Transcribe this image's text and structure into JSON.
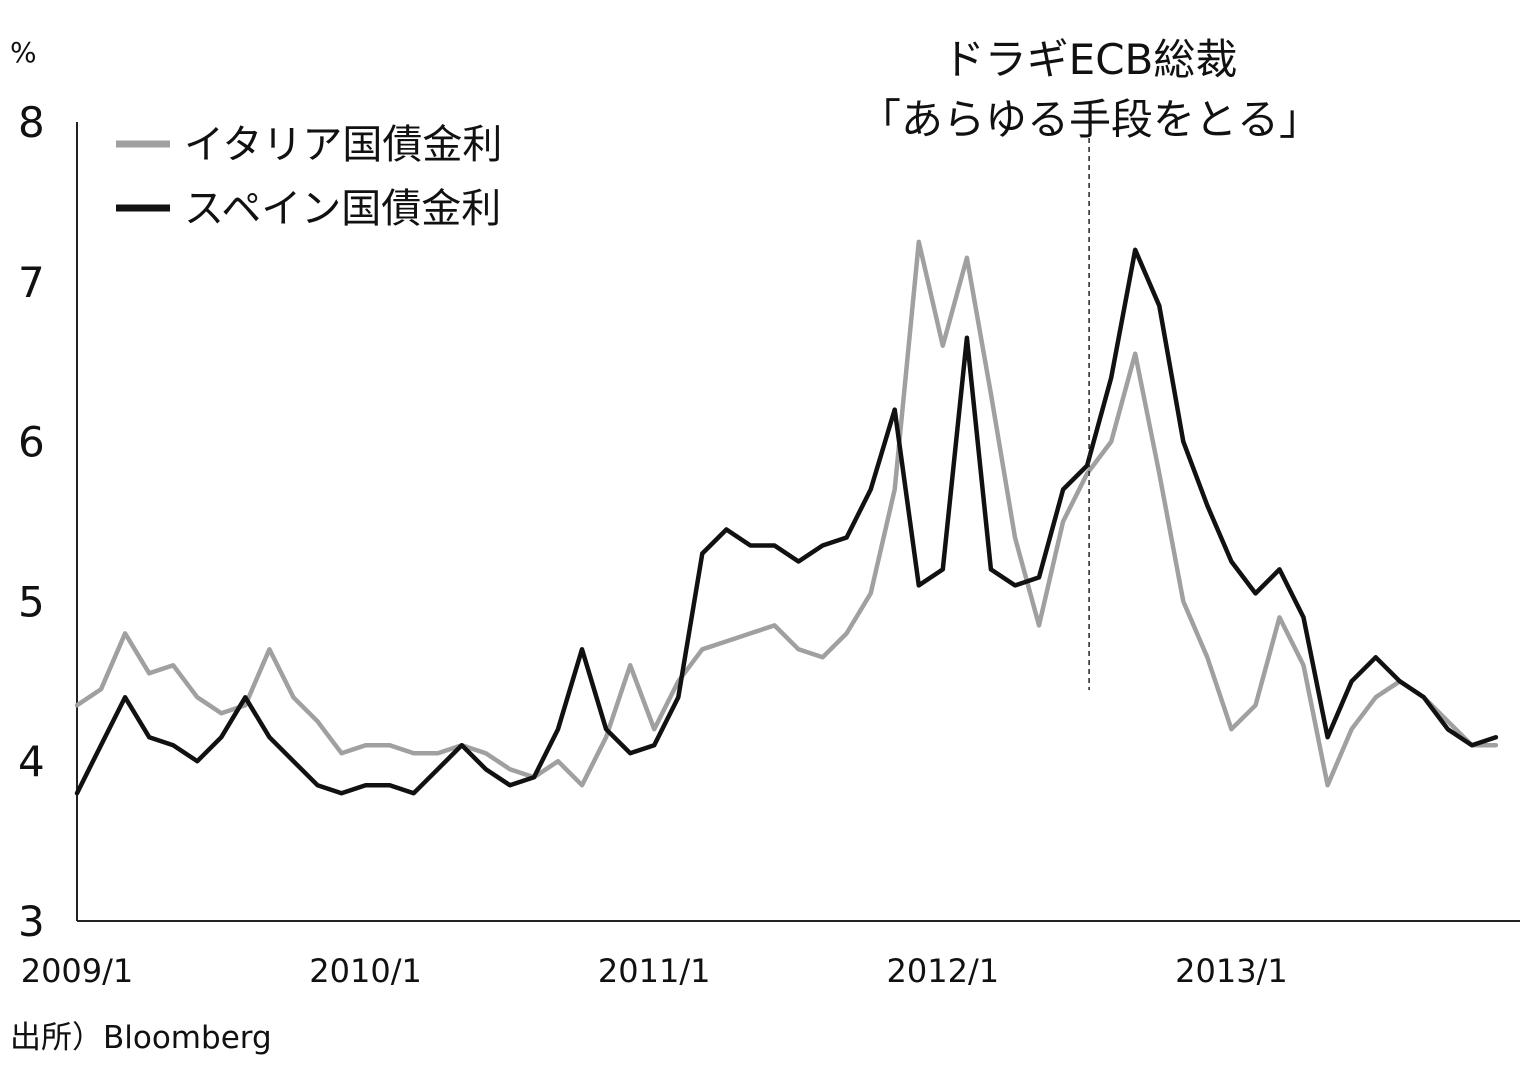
{
  "chart_data": {
    "type": "line",
    "y_unit": "%",
    "ylim": [
      3,
      8
    ],
    "y_ticks": [
      "3",
      "4",
      "5",
      "6",
      "7",
      "8"
    ],
    "x_range": [
      "2009/1",
      "2013/12"
    ],
    "x_ticks": [
      "2009/1",
      "2010/1",
      "2011/1",
      "2012/1",
      "2013/1"
    ],
    "legend_placement": "top-left",
    "grid": false,
    "series": [
      {
        "name": "イタリア国債金利",
        "color": "#a0a0a0",
        "points": [
          [
            "2009/1",
            4.35
          ],
          [
            "2009/2",
            4.45
          ],
          [
            "2009/3",
            4.8
          ],
          [
            "2009/4",
            4.55
          ],
          [
            "2009/5",
            4.6
          ],
          [
            "2009/6",
            4.4
          ],
          [
            "2009/7",
            4.3
          ],
          [
            "2009/8",
            4.35
          ],
          [
            "2009/9",
            4.7
          ],
          [
            "2009/10",
            4.4
          ],
          [
            "2009/11",
            4.25
          ],
          [
            "2009/12",
            4.05
          ],
          [
            "2010/1",
            4.1
          ],
          [
            "2010/2",
            4.1
          ],
          [
            "2010/3",
            4.05
          ],
          [
            "2010/4",
            4.05
          ],
          [
            "2010/5",
            4.1
          ],
          [
            "2010/6",
            4.05
          ],
          [
            "2010/7",
            3.95
          ],
          [
            "2010/8",
            3.9
          ],
          [
            "2010/9",
            4.0
          ],
          [
            "2010/10",
            3.85
          ],
          [
            "2010/11",
            4.15
          ],
          [
            "2010/12",
            4.6
          ],
          [
            "2011/1",
            4.2
          ],
          [
            "2011/2",
            4.5
          ],
          [
            "2011/3",
            4.7
          ],
          [
            "2011/4",
            4.75
          ],
          [
            "2011/5",
            4.8
          ],
          [
            "2011/6",
            4.85
          ],
          [
            "2011/7",
            4.7
          ],
          [
            "2011/8",
            4.65
          ],
          [
            "2011/9",
            4.8
          ],
          [
            "2011/10",
            5.05
          ],
          [
            "2011/11",
            5.7
          ],
          [
            "2011/12",
            7.25
          ],
          [
            "2012/1",
            6.6
          ],
          [
            "2012/2",
            7.15
          ],
          [
            "2012/3",
            6.3
          ],
          [
            "2012/4",
            5.4
          ],
          [
            "2012/5",
            4.85
          ],
          [
            "2012/6",
            5.5
          ],
          [
            "2012/7",
            5.8
          ],
          [
            "2012/8",
            6.0
          ],
          [
            "2012/9",
            6.55
          ],
          [
            "2012/10",
            5.8
          ],
          [
            "2012/11",
            5.0
          ],
          [
            "2012/12",
            4.65
          ],
          [
            "2013/1",
            4.2
          ],
          [
            "2013/2",
            4.35
          ],
          [
            "2013/3",
            4.9
          ],
          [
            "2013/4",
            4.6
          ],
          [
            "2013/5",
            3.85
          ],
          [
            "2013/6",
            4.2
          ],
          [
            "2013/7",
            4.4
          ],
          [
            "2013/8",
            4.5
          ],
          [
            "2013/9",
            4.4
          ],
          [
            "2013/10",
            4.25
          ],
          [
            "2013/11",
            4.1
          ],
          [
            "2013/12",
            4.1
          ]
        ]
      },
      {
        "name": "スペイン国債金利",
        "color": "#111111",
        "points": [
          [
            "2009/1",
            3.8
          ],
          [
            "2009/2",
            4.1
          ],
          [
            "2009/3",
            4.4
          ],
          [
            "2009/4",
            4.15
          ],
          [
            "2009/5",
            4.1
          ],
          [
            "2009/6",
            4.0
          ],
          [
            "2009/7",
            4.15
          ],
          [
            "2009/8",
            4.4
          ],
          [
            "2009/9",
            4.15
          ],
          [
            "2009/10",
            4.0
          ],
          [
            "2009/11",
            3.85
          ],
          [
            "2009/12",
            3.8
          ],
          [
            "2010/1",
            3.85
          ],
          [
            "2010/2",
            3.85
          ],
          [
            "2010/3",
            3.8
          ],
          [
            "2010/4",
            3.95
          ],
          [
            "2010/5",
            4.1
          ],
          [
            "2010/6",
            3.95
          ],
          [
            "2010/7",
            3.85
          ],
          [
            "2010/8",
            3.9
          ],
          [
            "2010/9",
            4.2
          ],
          [
            "2010/10",
            4.7
          ],
          [
            "2010/11",
            4.2
          ],
          [
            "2010/12",
            4.05
          ],
          [
            "2011/1",
            4.1
          ],
          [
            "2011/2",
            4.4
          ],
          [
            "2011/3",
            5.3
          ],
          [
            "2011/4",
            5.45
          ],
          [
            "2011/5",
            5.35
          ],
          [
            "2011/6",
            5.35
          ],
          [
            "2011/7",
            5.25
          ],
          [
            "2011/8",
            5.35
          ],
          [
            "2011/9",
            5.4
          ],
          [
            "2011/10",
            5.7
          ],
          [
            "2011/11",
            6.2
          ],
          [
            "2011/12",
            5.1
          ],
          [
            "2012/1",
            5.2
          ],
          [
            "2012/2",
            6.65
          ],
          [
            "2012/3",
            5.2
          ],
          [
            "2012/4",
            5.1
          ],
          [
            "2012/5",
            5.15
          ],
          [
            "2012/6",
            5.7
          ],
          [
            "2012/7",
            5.85
          ],
          [
            "2012/8",
            6.4
          ],
          [
            "2012/9",
            7.2
          ],
          [
            "2012/10",
            6.85
          ],
          [
            "2012/11",
            6.0
          ],
          [
            "2012/12",
            5.6
          ],
          [
            "2013/1",
            5.25
          ],
          [
            "2013/2",
            5.05
          ],
          [
            "2013/3",
            5.2
          ],
          [
            "2013/4",
            4.9
          ],
          [
            "2013/5",
            4.15
          ],
          [
            "2013/6",
            4.5
          ],
          [
            "2013/7",
            4.65
          ],
          [
            "2013/8",
            4.5
          ],
          [
            "2013/9",
            4.4
          ],
          [
            "2013/10",
            4.2
          ],
          [
            "2013/11",
            4.1
          ],
          [
            "2013/12",
            4.15
          ]
        ]
      }
    ],
    "annotation": {
      "x": "2012/7",
      "lines": [
        "ドラギECB総裁",
        "「あらゆる手段をとる」"
      ]
    },
    "source": "出所）Bloomberg"
  }
}
